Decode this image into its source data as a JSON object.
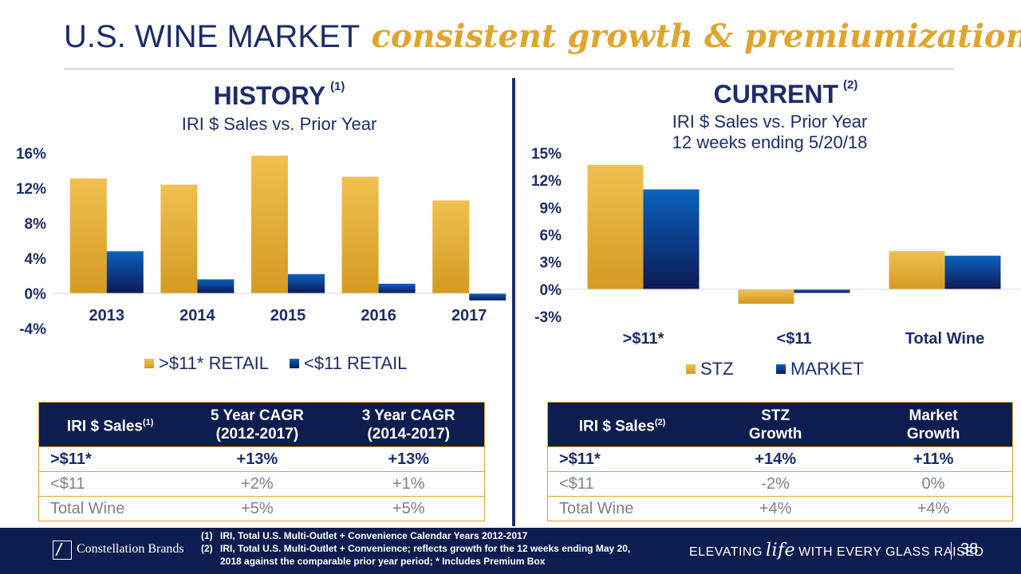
{
  "slide": {
    "title_plain": "U.S. WINE MARKET",
    "title_emphasis": "consistent growth & premiumization",
    "page_number": "38"
  },
  "history": {
    "title": "HISTORY",
    "footnote_ref": "(1)",
    "subtitle": "IRI $ Sales vs. Prior Year"
  },
  "current": {
    "title": "CURRENT",
    "footnote_ref": "(2)",
    "subtitle_line1": "IRI $ Sales vs. Prior Year",
    "subtitle_line2": "12 weeks ending 5/20/18"
  },
  "colors": {
    "gold": "#e0a52e",
    "navy": "#1c2c6b",
    "dark_navy": "#0e1d4f",
    "market_blue": "#0b56a8"
  },
  "chart_data": [
    {
      "type": "bar",
      "categories": [
        "2013",
        "2014",
        "2015",
        "2016",
        "2017"
      ],
      "series": [
        {
          "name": ">$11* RETAIL",
          "values": [
            13.1,
            12.4,
            15.7,
            13.3,
            10.6
          ]
        },
        {
          "name": "<$11 RETAIL",
          "values": [
            4.8,
            1.6,
            2.2,
            1.1,
            -0.8
          ]
        }
      ],
      "ylim": [
        -4,
        16
      ],
      "yticks": [
        -4,
        0,
        4,
        8,
        12,
        16
      ],
      "ytick_labels": [
        "-4%",
        "0%",
        "4%",
        "8%",
        "12%",
        "16%"
      ],
      "legend": "bottom",
      "grid": false
    },
    {
      "type": "bar",
      "categories": [
        ">$11*",
        "<$11",
        "Total Wine"
      ],
      "series": [
        {
          "name": "STZ",
          "values": [
            13.7,
            -1.6,
            4.2
          ]
        },
        {
          "name": "MARKET",
          "values": [
            11.0,
            -0.4,
            3.7
          ]
        }
      ],
      "ylim": [
        -3,
        15
      ],
      "yticks": [
        -3,
        0,
        3,
        6,
        9,
        12,
        15
      ],
      "ytick_labels": [
        "-3%",
        "0%",
        "3%",
        "6%",
        "9%",
        "12%",
        "15%"
      ],
      "legend": "bottom",
      "grid": false
    }
  ],
  "tables": {
    "history": {
      "headers": [
        "IRI $ Sales",
        "5 Year CAGR\n(2012-2017)",
        "3 Year CAGR\n(2014-2017)"
      ],
      "header_note": "(1)",
      "rows": [
        [
          ">$11*",
          "+13%",
          "+13%"
        ],
        [
          "<$11",
          "+2%",
          "+1%"
        ],
        [
          "Total Wine",
          "+5%",
          "+5%"
        ]
      ]
    },
    "current": {
      "headers": [
        "IRI $ Sales",
        "STZ\nGrowth",
        "Market\nGrowth"
      ],
      "header_note": "(2)",
      "rows": [
        [
          ">$11*",
          "+14%",
          "+11%"
        ],
        [
          "<$11",
          "-2%",
          "0%"
        ],
        [
          "Total Wine",
          "+4%",
          "+4%"
        ]
      ]
    }
  },
  "footer": {
    "brand": "Constellation Brands",
    "note1_num": "(1)",
    "note1": "IRI, Total U.S. Multi-Outlet + Convenience Calendar Years 2012-2017",
    "note2_num": "(2)",
    "note2a": "IRI, Total U.S. Multi-Outlet + Convenience; reflects growth for the 12 weeks ending May 20,",
    "note2b": "2018 against the comparable prior year period; * Includes Premium Box",
    "tag_pre": "ELEVATING",
    "tag_life": "life",
    "tag_post": "WITH EVERY GLASS RAISED",
    "logo_icon": "constellation-logo-icon"
  }
}
